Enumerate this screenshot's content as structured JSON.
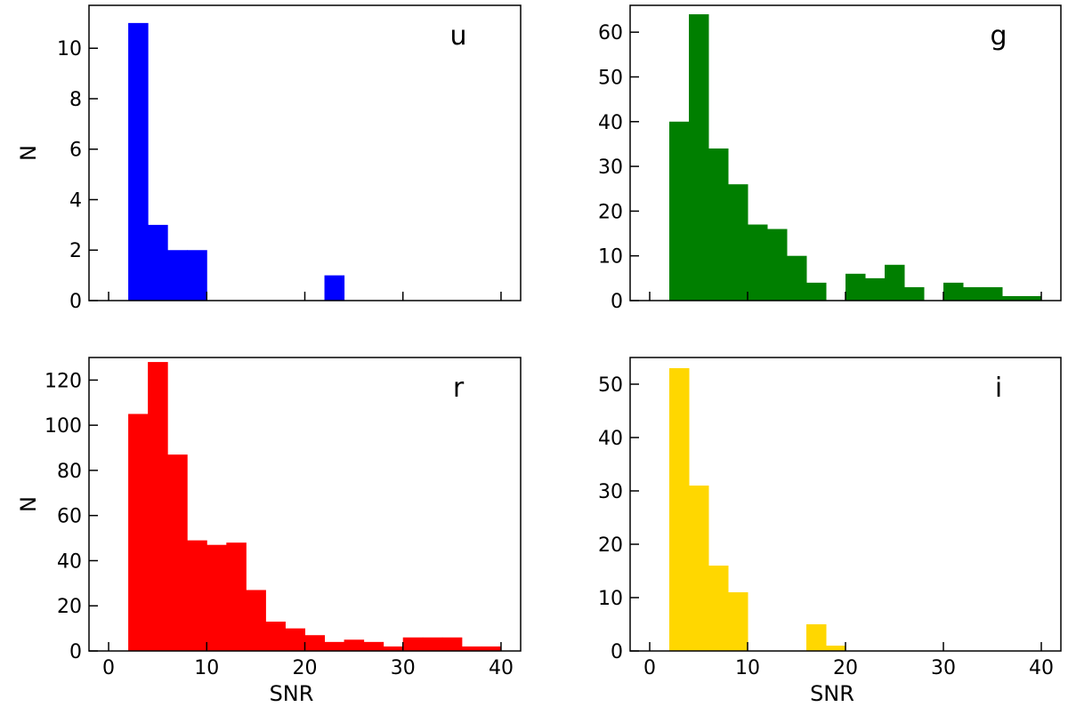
{
  "chart_data": [
    {
      "type": "bar",
      "panel_label": "u",
      "color": "#0000ff",
      "bin_width": 2,
      "x_bins": [
        2,
        4,
        6,
        8,
        22
      ],
      "values": [
        11,
        3,
        2,
        2,
        1
      ],
      "xlim": [
        -2,
        42
      ],
      "ylim": [
        0,
        11.7
      ],
      "xticks": [
        "0",
        "10",
        "20",
        "30",
        "40"
      ],
      "yticks": [
        "0",
        "2",
        "4",
        "6",
        "8",
        "10"
      ],
      "xlabel": "",
      "ylabel": "N"
    },
    {
      "type": "bar",
      "panel_label": "g",
      "color": "#007f00",
      "bin_width": 2,
      "x_bins": [
        2,
        4,
        6,
        8,
        10,
        12,
        14,
        16,
        20,
        22,
        24,
        26,
        30,
        32,
        34,
        36,
        38
      ],
      "values": [
        40,
        64,
        34,
        26,
        17,
        16,
        10,
        4,
        6,
        5,
        8,
        3,
        4,
        3,
        3,
        1,
        1
      ],
      "xlim": [
        -2,
        42
      ],
      "ylim": [
        0,
        66
      ],
      "xticks": [
        "0",
        "10",
        "20",
        "30",
        "40"
      ],
      "yticks": [
        "0",
        "10",
        "20",
        "30",
        "40",
        "50",
        "60"
      ],
      "xlabel": "",
      "ylabel": ""
    },
    {
      "type": "bar",
      "panel_label": "r",
      "color": "#ff0000",
      "bin_width": 2,
      "x_bins": [
        2,
        4,
        6,
        8,
        10,
        12,
        14,
        16,
        18,
        20,
        22,
        24,
        26,
        28,
        30,
        32,
        34,
        36,
        38
      ],
      "values": [
        105,
        128,
        87,
        49,
        47,
        48,
        27,
        13,
        10,
        7,
        4,
        5,
        4,
        2,
        6,
        6,
        6,
        2,
        2
      ],
      "xlim": [
        -2,
        42
      ],
      "ylim": [
        0,
        130
      ],
      "xticks": [
        "0",
        "10",
        "20",
        "30",
        "40"
      ],
      "yticks": [
        "0",
        "20",
        "40",
        "60",
        "80",
        "100",
        "120"
      ],
      "xlabel": "SNR",
      "ylabel": "N"
    },
    {
      "type": "bar",
      "panel_label": "i",
      "color": "#ffd700",
      "bin_width": 2,
      "x_bins": [
        2,
        4,
        6,
        8,
        16,
        18
      ],
      "values": [
        53,
        31,
        16,
        11,
        5,
        1
      ],
      "xlim": [
        -2,
        42
      ],
      "ylim": [
        0,
        55
      ],
      "xticks": [
        "0",
        "10",
        "20",
        "30",
        "40"
      ],
      "yticks": [
        "0",
        "10",
        "20",
        "30",
        "40",
        "50"
      ],
      "xlabel": "SNR",
      "ylabel": ""
    }
  ]
}
